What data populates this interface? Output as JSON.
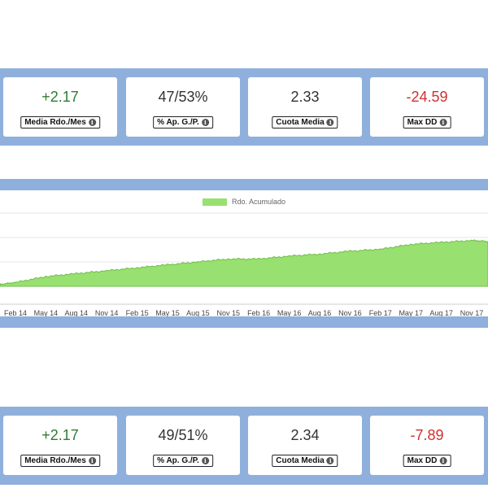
{
  "colors": {
    "band": "#8fb0dc",
    "positive": "#2e7d32",
    "negative": "#d32f2f",
    "neutral": "#333333",
    "area": "#98e06f",
    "area_stroke": "#6dbf4a"
  },
  "stats_top": [
    {
      "value": "+2.17",
      "label": "Media Rdo./Mes",
      "tone": "positive"
    },
    {
      "value": "47/53%",
      "label": "% Ap. G./P.",
      "tone": "neutral"
    },
    {
      "value": "2.33",
      "label": "Cuota Media",
      "tone": "neutral"
    },
    {
      "value": "-24.59",
      "label": "Max DD",
      "tone": "negative"
    }
  ],
  "stats_bottom": [
    {
      "value": "+2.17",
      "label": "Media Rdo./Mes",
      "tone": "positive"
    },
    {
      "value": "49/51%",
      "label": "% Ap. G./P.",
      "tone": "neutral"
    },
    {
      "value": "2.34",
      "label": "Cuota Media",
      "tone": "neutral"
    },
    {
      "value": "-7.89",
      "label": "Max DD",
      "tone": "negative"
    }
  ],
  "info_icon": "info-icon",
  "chart_data": {
    "type": "area",
    "legend": [
      "Rdo. Acumulado"
    ],
    "x": [
      "Feb 14",
      "May 14",
      "Aug 14",
      "Nov 14",
      "Feb 15",
      "May 15",
      "Aug 15",
      "Nov 15",
      "Feb 16",
      "May 16",
      "Aug 16",
      "Nov 16",
      "Feb 17",
      "May 17",
      "Aug 17",
      "Nov 17"
    ],
    "series": [
      {
        "name": "Rdo. Acumulado",
        "values": [
          4,
          10,
          13,
          16,
          19,
          22,
          25,
          28,
          28,
          31,
          33,
          36,
          38,
          43,
          45,
          47
        ]
      }
    ],
    "ylim": [
      -10,
      75
    ],
    "grid": true
  }
}
